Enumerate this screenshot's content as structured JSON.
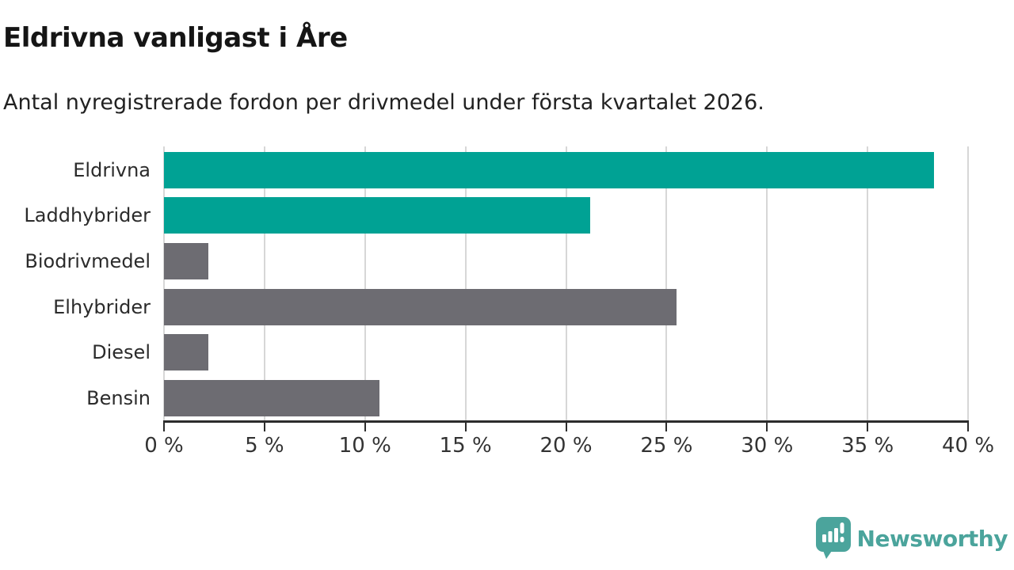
{
  "header": {
    "title": "Eldrivna vanligast i Åre",
    "subtitle": "Antal nyregistrerade fordon per drivmedel under första kvartalet 2026."
  },
  "chart_data": {
    "type": "bar",
    "orientation": "horizontal",
    "title": "Eldrivna vanligast i Åre",
    "subtitle": "Antal nyregistrerade fordon per drivmedel under första kvartalet 2026.",
    "categories": [
      "Eldrivna",
      "Laddhybrider",
      "Biodrivmedel",
      "Elhybrider",
      "Diesel",
      "Bensin"
    ],
    "values": [
      38.3,
      21.2,
      2.2,
      25.5,
      2.2,
      10.7
    ],
    "unit": "%",
    "bar_colors": [
      "#00a294",
      "#00a294",
      "#6d6c72",
      "#6d6c72",
      "#6d6c72",
      "#6d6c72"
    ],
    "highlight_color": "#00a294",
    "default_color": "#6d6c72",
    "xlabel": "",
    "ylabel": "",
    "xlim": [
      0,
      40
    ],
    "x_tick_step": 5,
    "x_tick_labels": [
      "0 %",
      "5 %",
      "10 %",
      "15 %",
      "20 %",
      "25 %",
      "30 %",
      "35 %",
      "40 %"
    ],
    "grid": true,
    "gridline_color": "#d7d7d7",
    "legend": "none"
  },
  "footer": {
    "brand": "Newsworthy",
    "logo_color": "#4ba49c",
    "logo_icon": "speech-bubble-bar-chart-icon"
  }
}
